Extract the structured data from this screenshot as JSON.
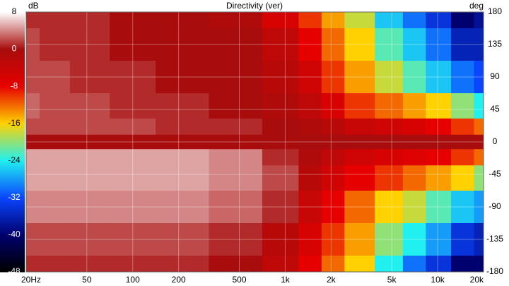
{
  "chart_data": {
    "type": "heatmap",
    "title": "Directivity (ver)",
    "colorbar_label": "dB",
    "y_label": "deg",
    "x": [
      20,
      30,
      50,
      100,
      200,
      500,
      1000,
      1500,
      2000,
      3000,
      5000,
      7000,
      10000,
      15000,
      20000
    ],
    "y": [
      180,
      135,
      90,
      45,
      20,
      0,
      -20,
      -45,
      -90,
      -135,
      -180
    ],
    "z": [
      [
        1,
        1,
        1,
        0,
        0,
        -1,
        -6,
        -10,
        -14,
        -18,
        -26,
        -30,
        -34,
        -40,
        -38
      ],
      [
        2,
        1,
        1,
        0,
        0,
        0,
        -3,
        -8,
        -12,
        -16,
        -22,
        -26,
        -30,
        -36,
        -36
      ],
      [
        2,
        2,
        1,
        1,
        0,
        0,
        -2,
        -5,
        -10,
        -14,
        -18,
        -22,
        -26,
        -30,
        -32
      ],
      [
        3,
        2,
        2,
        1,
        1,
        0,
        -1,
        -3,
        -6,
        -10,
        -12,
        -14,
        -16,
        -20,
        -24
      ],
      [
        2,
        2,
        2,
        2,
        1,
        1,
        0,
        -1,
        -2,
        -4,
        -5,
        -6,
        -8,
        -10,
        -12
      ],
      [
        0,
        0,
        0,
        0,
        0,
        0,
        0,
        0,
        0,
        0,
        0,
        0,
        0,
        0,
        0
      ],
      [
        5,
        5,
        5,
        5,
        5,
        4,
        1,
        -1,
        -3,
        -5,
        -6,
        -7,
        -8,
        -10,
        -12
      ],
      [
        5,
        5,
        5,
        5,
        5,
        4,
        2,
        -2,
        -5,
        -8,
        -10,
        -12,
        -14,
        -16,
        -20
      ],
      [
        4,
        4,
        4,
        4,
        4,
        3,
        1,
        -4,
        -8,
        -12,
        -16,
        -18,
        -22,
        -26,
        -28
      ],
      [
        2,
        2,
        2,
        2,
        2,
        1,
        -2,
        -6,
        -10,
        -14,
        -20,
        -24,
        -28,
        -34,
        -36
      ],
      [
        1,
        1,
        1,
        1,
        1,
        0,
        -3,
        -8,
        -12,
        -16,
        -24,
        -30,
        -34,
        -40,
        -40
      ]
    ],
    "log_x": true,
    "grid": true,
    "xlim": [
      20,
      20000
    ],
    "xticks": [
      {
        "value": 20,
        "label": "20Hz"
      },
      50,
      100,
      200,
      500,
      {
        "value": 1000,
        "label": "1k"
      },
      {
        "value": 2000,
        "label": "2k"
      },
      {
        "value": 5000,
        "label": "5k"
      },
      {
        "value": 10000,
        "label": "10k"
      },
      {
        "value": 20000,
        "label": "20k"
      }
    ],
    "ylim": [
      -180,
      180
    ],
    "yticks": [
      180,
      135,
      90,
      45,
      0,
      -45,
      -90,
      -135,
      -180
    ],
    "clim": [
      -48,
      8
    ],
    "cticks": [
      8,
      0,
      -8,
      -16,
      -24,
      -32,
      -40,
      -48
    ],
    "colors": [
      "#ffffff",
      "#a80c0c",
      "#e60000",
      "#ffd200",
      "#20f0f0",
      "#0a46ff",
      "#00006e",
      "#000000"
    ]
  }
}
